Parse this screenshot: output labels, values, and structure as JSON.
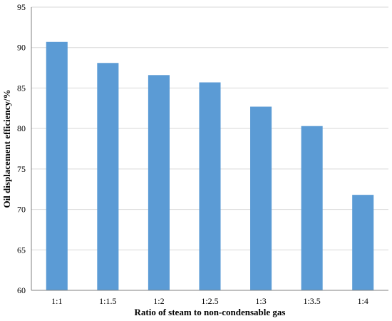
{
  "chart_data": {
    "type": "bar",
    "categories": [
      "1:1",
      "1:1.5",
      "1:2",
      "1:2.5",
      "1:3",
      "1:3.5",
      "1:4"
    ],
    "values": [
      90.7,
      88.1,
      86.6,
      85.7,
      82.7,
      80.3,
      71.8
    ],
    "title": "",
    "xlabel": "Ratio of steam to non-condensable gas",
    "ylabel": "Oil displacement efficiency/%",
    "ylim": [
      60,
      95
    ],
    "yticks": [
      60,
      65,
      70,
      75,
      80,
      85,
      90,
      95
    ],
    "grid": true,
    "legend": "none",
    "bar_color": "#5b9bd5",
    "grid_color": "#d9d9d9",
    "axis_color": "#808080"
  }
}
